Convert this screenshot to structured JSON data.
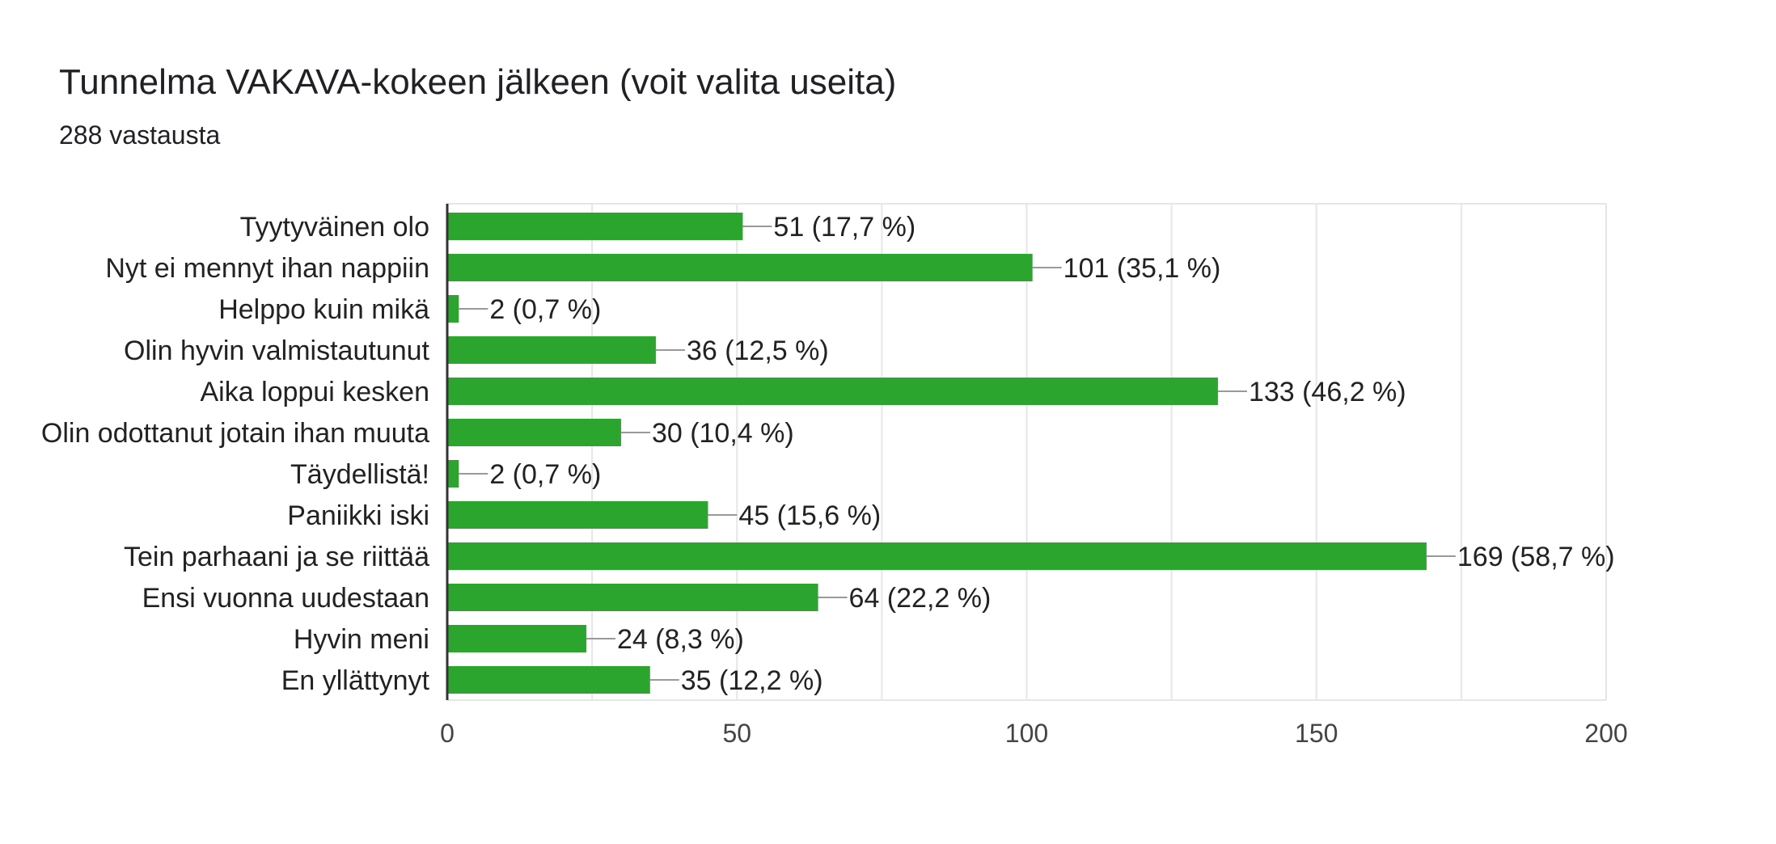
{
  "header": {
    "title": "Tunnelma VAKAVA-kokeen jälkeen (voit valita useita)",
    "subtitle": "288 vastausta"
  },
  "colors": {
    "bar": "#2ca52f",
    "grid": "#e6e6e6",
    "axis": "#333333",
    "leader": "#999999"
  },
  "chart_data": {
    "type": "bar",
    "orientation": "horizontal",
    "categories": [
      "Tyytyväinen olo",
      "Nyt ei mennyt ihan nappiin",
      "Helppo kuin mikä",
      "Olin hyvin valmistautunut",
      "Aika loppui kesken",
      "Olin odottanut jotain ihan muuta",
      "Täydellistä!",
      "Paniikki iski",
      "Tein parhaani ja se riittää",
      "Ensi vuonna uudestaan",
      "Hyvin meni",
      "En yllättynyt"
    ],
    "values": [
      51,
      101,
      2,
      36,
      133,
      30,
      2,
      45,
      169,
      64,
      24,
      35
    ],
    "data_labels": [
      "51 (17,7 %)",
      "101 (35,1 %)",
      "2 (0,7 %)",
      "36 (12,5 %)",
      "133 (46,2 %)",
      "30 (10,4 %)",
      "2 (0,7 %)",
      "45 (15,6 %)",
      "169 (58,7 %)",
      "64 (22,2 %)",
      "24 (8,3 %)",
      "35 (12,2 %)"
    ],
    "xlim": [
      0,
      200
    ],
    "xticks": [
      "0",
      "50",
      "100",
      "150",
      "200"
    ],
    "grid": true,
    "xlabel": "",
    "ylabel": ""
  }
}
